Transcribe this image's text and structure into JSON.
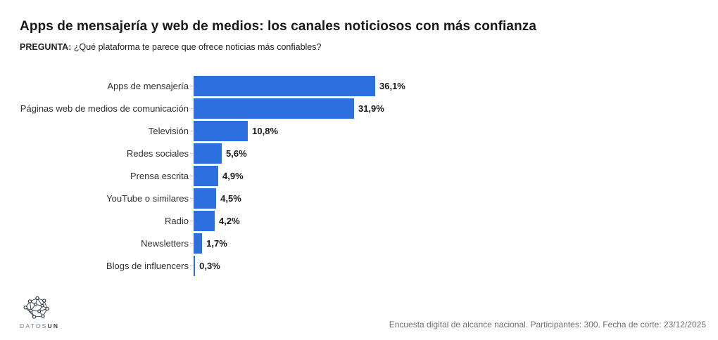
{
  "header": {
    "title": "Apps de mensajería y web de medios: los canales noticiosos con más confianza",
    "question_label": "PREGUNTA:",
    "question_text": "¿Qué plataforma te parece que ofrece noticias más confiables?"
  },
  "chart_data": {
    "type": "bar",
    "orientation": "horizontal",
    "title": "Apps de mensajería y web de medios: los canales noticiosos con más confianza",
    "subtitle": "PREGUNTA: ¿Qué plataforma te parece que ofrece noticias más confiables?",
    "categories": [
      "Apps de mensajería",
      "Páginas web de medios de comunicación",
      "Televisión",
      "Redes sociales",
      "Prensa escrita",
      "YouTube o similares",
      "Radio",
      "Newsletters",
      "Blogs de influencers"
    ],
    "values": [
      36.1,
      31.9,
      10.8,
      5.6,
      4.9,
      4.5,
      4.2,
      1.7,
      0.3
    ],
    "value_labels": [
      "36,1%",
      "31,9%",
      "10,8%",
      "5,6%",
      "4,9%",
      "4,5%",
      "4,2%",
      "1,7%",
      "0,3%"
    ],
    "unit": "%",
    "xlim": [
      0,
      36.1
    ],
    "bar_color": "#2e6fe0",
    "grid": false,
    "legend": "none",
    "value_label_position": "outside-end"
  },
  "footer": {
    "logo": {
      "icon": "network-graph-icon",
      "text_light": "DATOS",
      "text_bold": "UN"
    },
    "source_note": "Encuesta digital de alcance nacional. Participantes: 300. Fecha de corte: 23/12/2025"
  }
}
